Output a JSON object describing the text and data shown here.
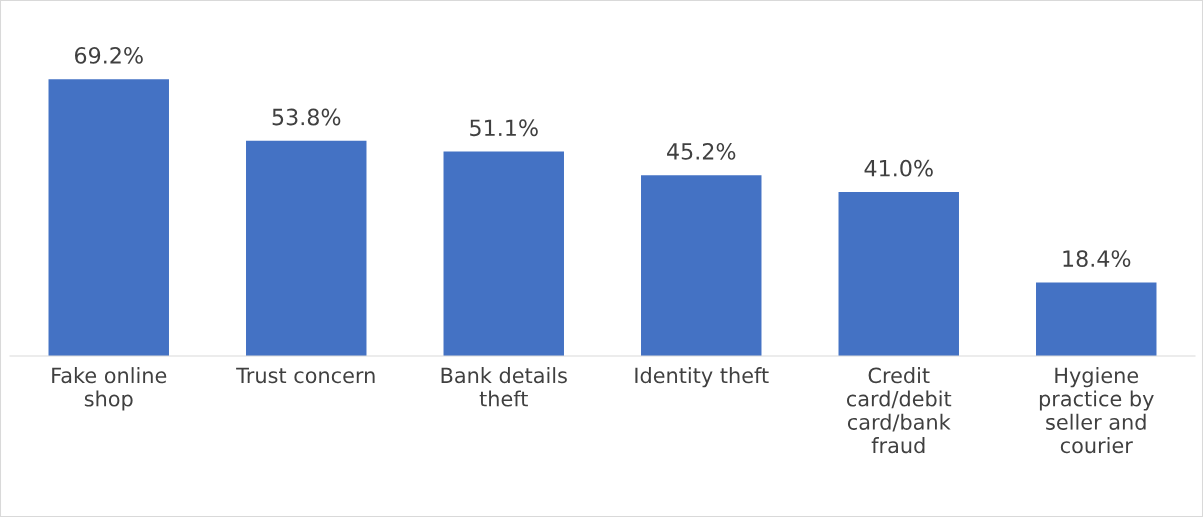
{
  "chart_data": {
    "type": "bar",
    "categories": [
      "Fake online\nshop",
      "Trust concern",
      "Bank details\ntheft",
      "Identity theft",
      "Credit\ncard/debit\ncard/bank\nfraud",
      "Hygiene\npractice by\nseller and\ncourier"
    ],
    "values": [
      69.2,
      53.8,
      51.1,
      45.2,
      41.0,
      18.4
    ],
    "value_labels": [
      "69.2%",
      "53.8%",
      "51.1%",
      "45.2%",
      "41.0%",
      "18.4%"
    ],
    "color": "#4472c4",
    "grid": false,
    "legend": false,
    "tick_labels": "x"
  }
}
